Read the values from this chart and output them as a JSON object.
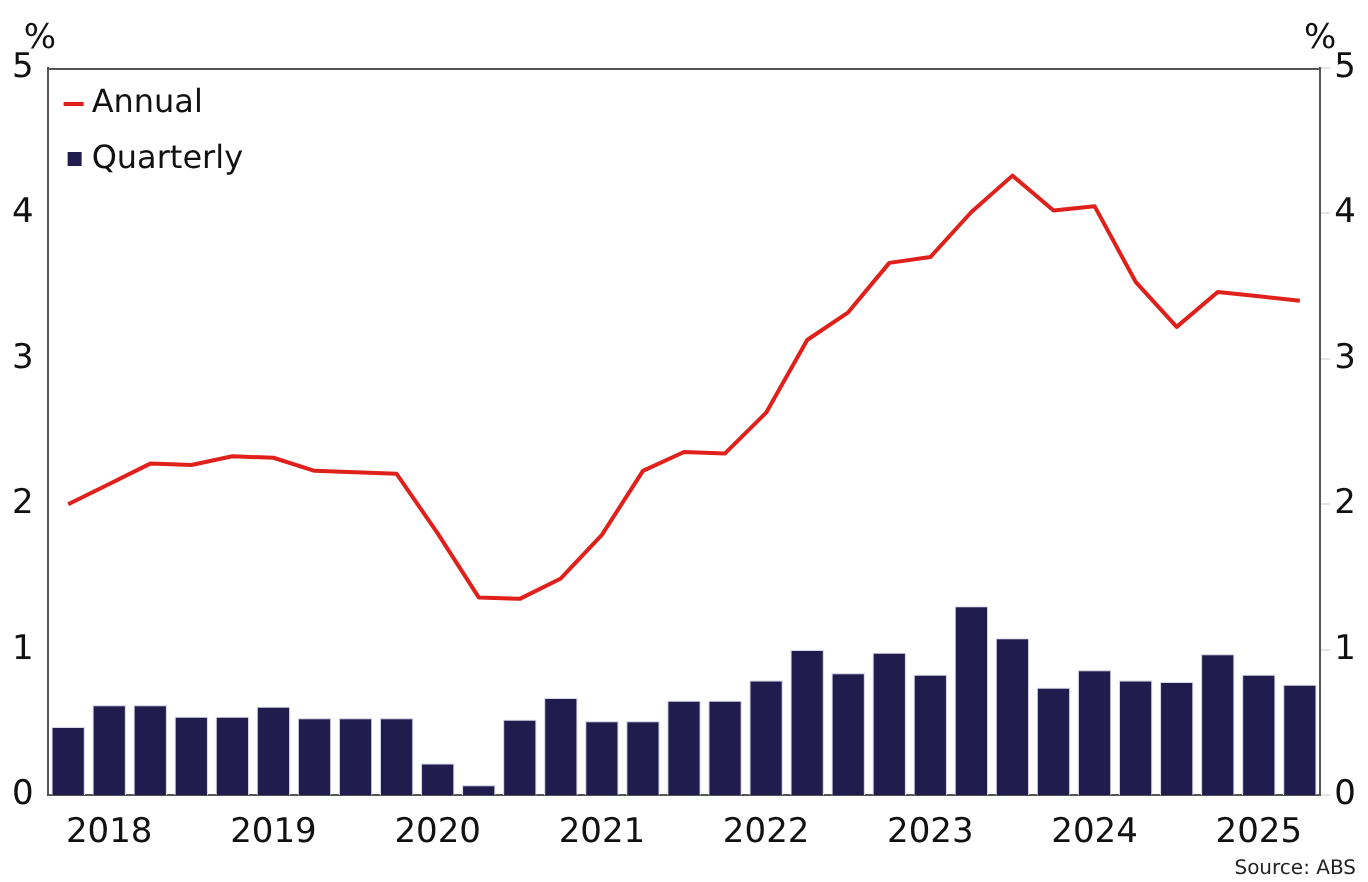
{
  "chart_data": {
    "type": "bar",
    "ylabel": "%",
    "y2label": "%",
    "categories": [
      null,
      "2018",
      null,
      null,
      null,
      "2019",
      null,
      null,
      null,
      "2020",
      null,
      null,
      null,
      "2021",
      null,
      null,
      null,
      "2022",
      null,
      null,
      null,
      "2023",
      null,
      null,
      null,
      "2024",
      null,
      null,
      null,
      "2025",
      null
    ],
    "series": [
      {
        "name": "Annual",
        "type": "line",
        "color": "#e0201b",
        "values": [
          2.0,
          2.14,
          2.28,
          2.27,
          2.33,
          2.32,
          2.23,
          2.22,
          2.21,
          1.8,
          1.36,
          1.35,
          1.49,
          1.79,
          2.23,
          2.36,
          2.35,
          2.63,
          3.13,
          3.32,
          3.66,
          3.7,
          4.01,
          4.26,
          4.02,
          4.05,
          3.53,
          3.22,
          3.46,
          3.43,
          3.4
        ]
      },
      {
        "name": "Quarterly",
        "type": "bar",
        "color": "#201d4e",
        "values": [
          0.47,
          0.62,
          0.62,
          0.54,
          0.54,
          0.61,
          0.53,
          0.53,
          0.53,
          0.22,
          0.07,
          0.52,
          0.67,
          0.51,
          0.51,
          0.65,
          0.65,
          0.79,
          1.0,
          0.84,
          0.98,
          0.83,
          1.3,
          1.08,
          0.74,
          0.86,
          0.79,
          0.78,
          0.97,
          0.83,
          0.76
        ]
      }
    ],
    "ylim": [
      0,
      5
    ],
    "yticks": [
      0,
      1,
      2,
      3,
      4,
      5
    ],
    "y2lim": [
      0,
      5
    ],
    "y2ticks": [
      0,
      1,
      2,
      3,
      4,
      5
    ],
    "legend": "top left",
    "grid": false,
    "marker": "none",
    "line_style": "solid",
    "annotations": [
      "Source: ABS"
    ]
  }
}
